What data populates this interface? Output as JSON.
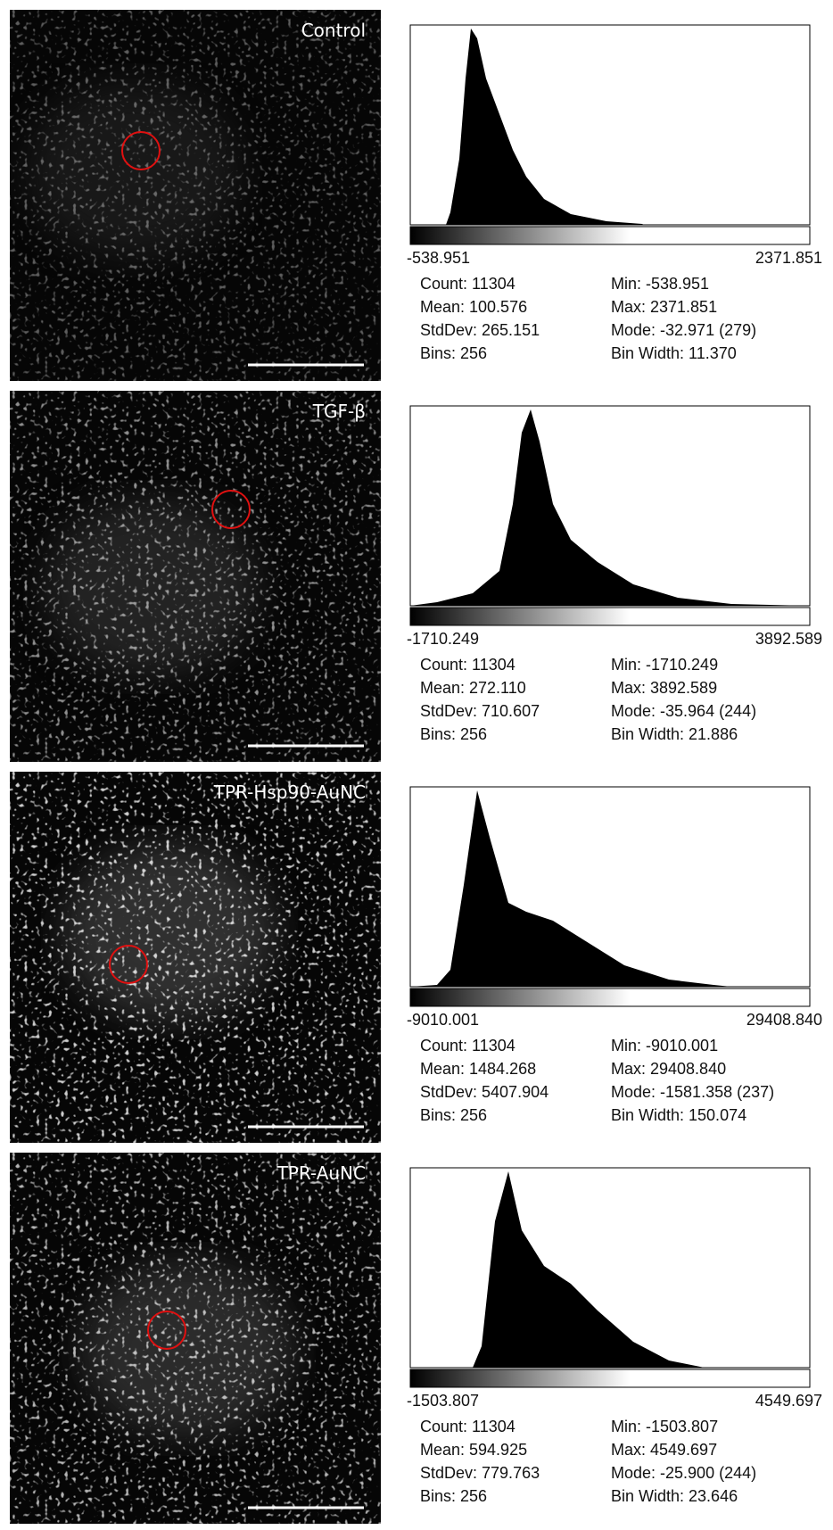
{
  "panels": [
    {
      "label": "Control",
      "hist_min": "-538.951",
      "hist_max": "2371.851",
      "stats": [
        [
          "Count: 11304",
          "Min: -538.951"
        ],
        [
          "Mean: 100.576",
          "Max: 2371.851"
        ],
        [
          "StdDev: 265.151",
          "Mode: -32.971 (279)"
        ],
        [
          "Bins: 256",
          "Bin Width: 11.370"
        ]
      ]
    },
    {
      "label": "TGF-β",
      "hist_min": "-1710.249",
      "hist_max": "3892.589",
      "stats": [
        [
          "Count: 11304",
          "Min: -1710.249"
        ],
        [
          "Mean: 272.110",
          "Max: 3892.589"
        ],
        [
          "StdDev: 710.607",
          "Mode: -35.964 (244)"
        ],
        [
          "Bins: 256",
          "Bin Width: 21.886"
        ]
      ]
    },
    {
      "label": "TPR-Hsp90-AuNC",
      "hist_min": "-9010.001",
      "hist_max": "29408.840",
      "stats": [
        [
          "Count: 11304",
          "Min: -9010.001"
        ],
        [
          "Mean: 1484.268",
          "Max: 29408.840"
        ],
        [
          "StdDev: 5407.904",
          "Mode: -1581.358 (237)"
        ],
        [
          "Bins: 256",
          "Bin Width: 150.074"
        ]
      ]
    },
    {
      "label": "TPR-AuNC",
      "hist_min": "-1503.807",
      "hist_max": "4549.697",
      "stats": [
        [
          "Count: 11304",
          "Min: -1503.807"
        ],
        [
          "Mean: 594.925",
          "Max: 4549.697"
        ],
        [
          "StdDev: 779.763",
          "Mode: -25.900 (244)"
        ],
        [
          "Bins: 256",
          "Bin Width: 23.646"
        ]
      ]
    }
  ]
}
